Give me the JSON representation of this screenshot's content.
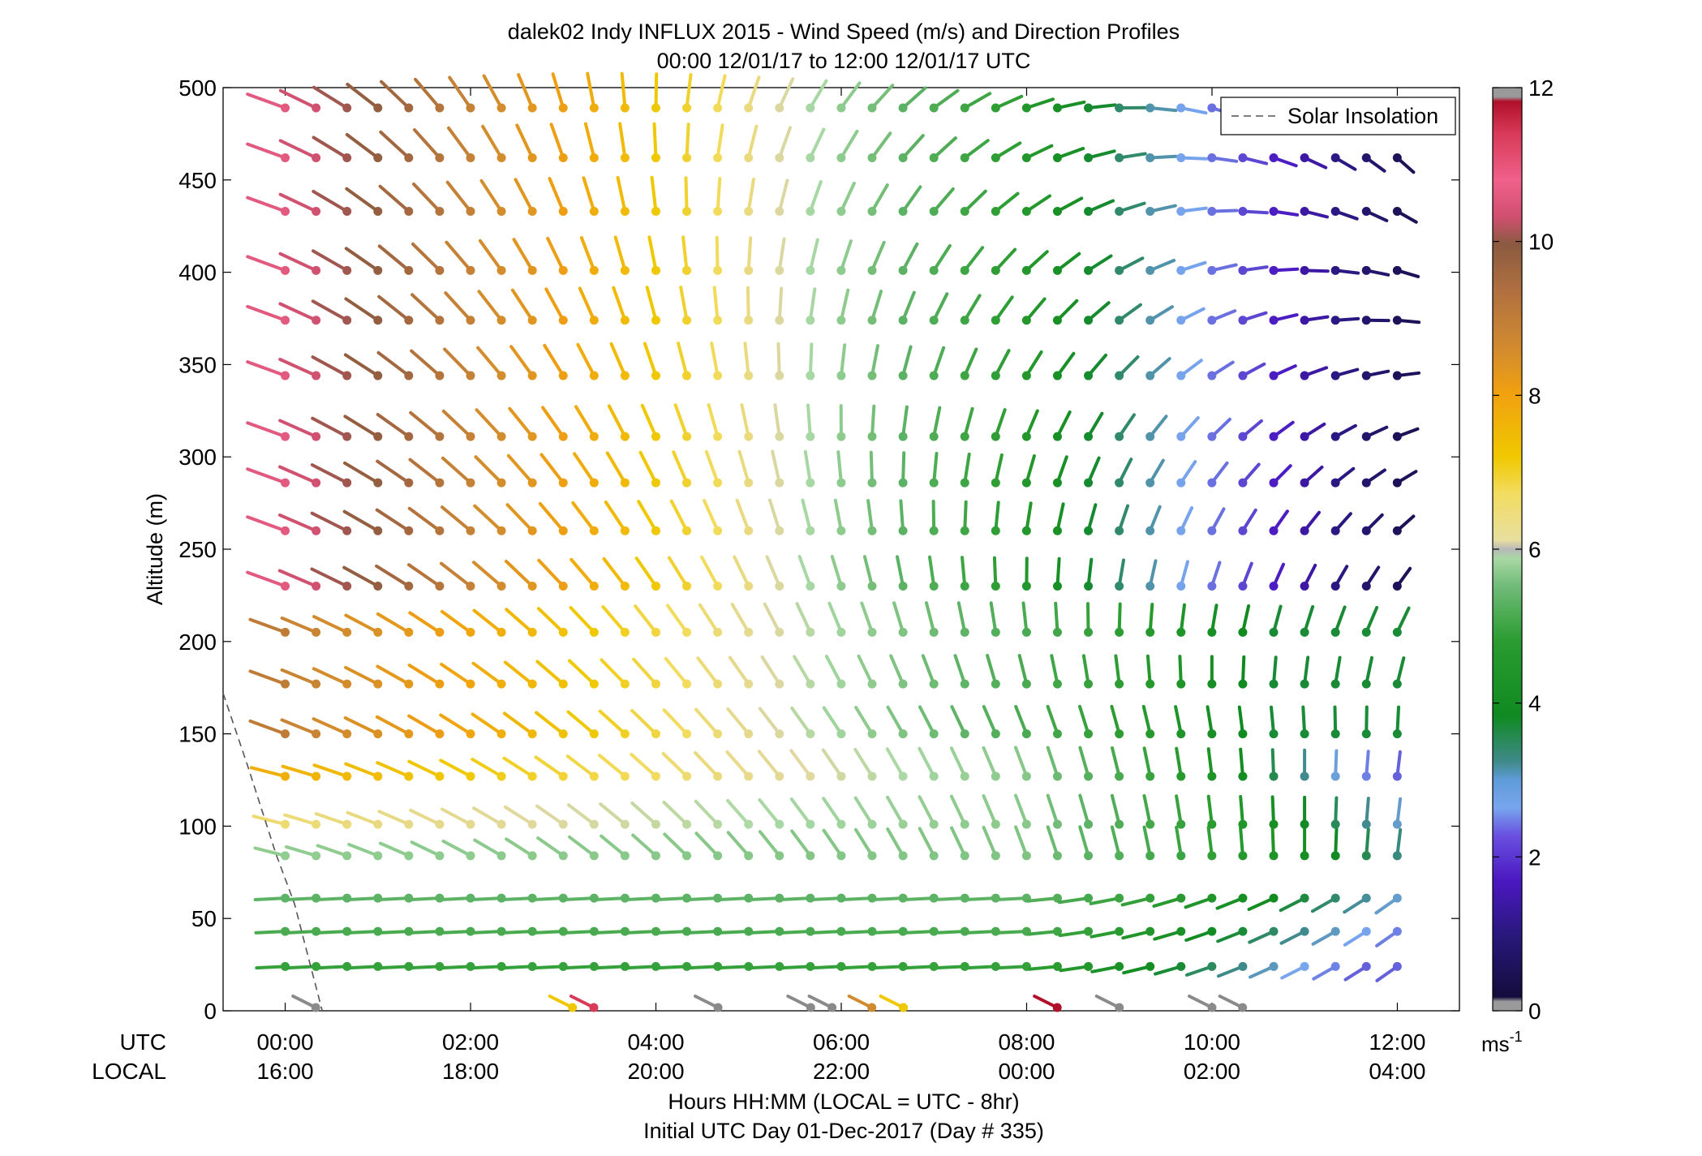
{
  "chart_data": {
    "type": "wind-barb-profile",
    "title": "dalek02 Indy INFLUX 2015 - Wind Speed (m/s) and Direction Profiles",
    "subtitle": "00:00 12/01/17 to 12:00 12/01/17  UTC",
    "ylabel": "Altitude (m)",
    "xlabel": "Hours HH:MM  (LOCAL = UTC - 8hr)",
    "xlabel2": "Initial UTC Day 01-Dec-2017 (Day # 335)",
    "utc_row_label": "UTC",
    "local_row_label": "LOCAL",
    "x_ticks_utc": [
      "00:00",
      "02:00",
      "04:00",
      "06:00",
      "08:00",
      "10:00",
      "12:00"
    ],
    "x_ticks_local": [
      "16:00",
      "18:00",
      "20:00",
      "22:00",
      "00:00",
      "02:00",
      "04:00"
    ],
    "y_ticks": [
      0,
      50,
      100,
      150,
      200,
      250,
      300,
      350,
      400,
      450,
      500
    ],
    "ylim": [
      0,
      500
    ],
    "xlim_hours": [
      -0.67,
      12.67
    ],
    "legend": {
      "entries": [
        "Solar Insolation"
      ],
      "style": "dashed",
      "color": "#555555",
      "position": "top-right"
    },
    "colorbar": {
      "ticks": [
        0,
        2,
        4,
        6,
        8,
        10,
        12
      ],
      "unit": "ms",
      "unit_exp": "-1",
      "range": [
        0,
        12
      ]
    },
    "solar_insolation": {
      "x_hours": [
        -0.67,
        -0.4,
        -0.1,
        0.1,
        0.27,
        0.4
      ],
      "y": [
        172,
        132,
        85,
        58,
        25,
        0
      ]
    },
    "altitude_levels": [
      24,
      43,
      61,
      84,
      101,
      127,
      150,
      177,
      205,
      230,
      260,
      286,
      311,
      344,
      374,
      401,
      433,
      462,
      489
    ],
    "time_hours_step": 0.3333,
    "time_steps": 37,
    "surface_obs_x_hours": [
      0.33,
      3.1,
      3.33,
      4.67,
      5.67,
      5.9,
      6.33,
      6.67,
      8.33,
      9.0,
      10.0,
      10.33
    ],
    "note_data": "Wind barbs: speed (m/s) by colour, direction by staff orientation, sampled every 20 min at each altitude level"
  }
}
